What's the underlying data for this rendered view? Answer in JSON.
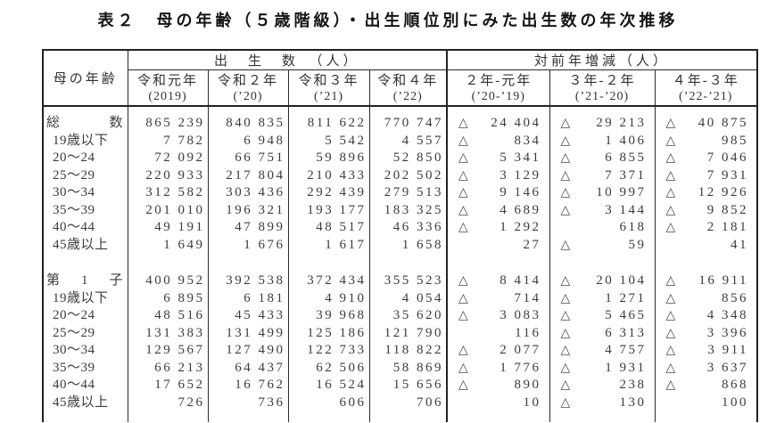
{
  "title": "表２　母の年齢（５歳階級）・出生順位別にみた出生数の年次推移",
  "table": {
    "corner_header": "母の年齢",
    "negative_mark": "△",
    "groups": [
      {
        "label": "出　生　数　（人）",
        "columns": [
          {
            "line1": "令和元年",
            "line2": "(2019)"
          },
          {
            "line1": "令和２年",
            "line2": "(’20)"
          },
          {
            "line1": "令和３年",
            "line2": "(’21)"
          },
          {
            "line1": "令和４年",
            "line2": "(’22)"
          }
        ]
      },
      {
        "label": "対前年増減（人）",
        "columns": [
          {
            "line1": "２年-元年",
            "line2": "(’20-’19)"
          },
          {
            "line1": "３年-２年",
            "line2": "(’21-’20)"
          },
          {
            "line1": "４年-３年",
            "line2": "(’22-’21)"
          }
        ]
      }
    ],
    "sections": [
      {
        "name": "総数",
        "rows": [
          {
            "label": "総数",
            "justify": true,
            "births": [
              "865 239",
              "840 835",
              "811 622",
              "770 747"
            ],
            "diffs": [
              {
                "neg": true,
                "value": "24 404"
              },
              {
                "neg": true,
                "value": "29 213"
              },
              {
                "neg": true,
                "value": "40 875"
              }
            ]
          },
          {
            "label": "19歳以下",
            "justify": false,
            "births": [
              "7 782",
              "6 948",
              "5 542",
              "4 557"
            ],
            "diffs": [
              {
                "neg": true,
                "value": "834"
              },
              {
                "neg": true,
                "value": "1 406"
              },
              {
                "neg": true,
                "value": "985"
              }
            ]
          },
          {
            "label": "20〜24",
            "justify": false,
            "births": [
              "72 092",
              "66 751",
              "59 896",
              "52 850"
            ],
            "diffs": [
              {
                "neg": true,
                "value": "5 341"
              },
              {
                "neg": true,
                "value": "6 855"
              },
              {
                "neg": true,
                "value": "7 046"
              }
            ]
          },
          {
            "label": "25〜29",
            "justify": false,
            "births": [
              "220 933",
              "217 804",
              "210 433",
              "202 502"
            ],
            "diffs": [
              {
                "neg": true,
                "value": "3 129"
              },
              {
                "neg": true,
                "value": "7 371"
              },
              {
                "neg": true,
                "value": "7 931"
              }
            ]
          },
          {
            "label": "30〜34",
            "justify": false,
            "births": [
              "312 582",
              "303 436",
              "292 439",
              "279 513"
            ],
            "diffs": [
              {
                "neg": true,
                "value": "9 146"
              },
              {
                "neg": true,
                "value": "10 997"
              },
              {
                "neg": true,
                "value": "12 926"
              }
            ]
          },
          {
            "label": "35〜39",
            "justify": false,
            "births": [
              "201 010",
              "196 321",
              "193 177",
              "183 325"
            ],
            "diffs": [
              {
                "neg": true,
                "value": "4 689"
              },
              {
                "neg": true,
                "value": "3 144"
              },
              {
                "neg": true,
                "value": "9 852"
              }
            ]
          },
          {
            "label": "40〜44",
            "justify": false,
            "births": [
              "49 191",
              "47 899",
              "48 517",
              "46 336"
            ],
            "diffs": [
              {
                "neg": true,
                "value": "1 292"
              },
              {
                "neg": false,
                "value": "618"
              },
              {
                "neg": true,
                "value": "2 181"
              }
            ]
          },
          {
            "label": "45歳以上",
            "justify": false,
            "births": [
              "1 649",
              "1 676",
              "1 617",
              "1 658"
            ],
            "diffs": [
              {
                "neg": false,
                "value": "27"
              },
              {
                "neg": true,
                "value": "59"
              },
              {
                "neg": false,
                "value": "41"
              }
            ]
          }
        ]
      },
      {
        "name": "第1子",
        "rows": [
          {
            "label": "第1子",
            "justify": true,
            "births": [
              "400 952",
              "392 538",
              "372 434",
              "355 523"
            ],
            "diffs": [
              {
                "neg": true,
                "value": "8 414"
              },
              {
                "neg": true,
                "value": "20 104"
              },
              {
                "neg": true,
                "value": "16 911"
              }
            ]
          },
          {
            "label": "19歳以下",
            "justify": false,
            "births": [
              "6 895",
              "6 181",
              "4 910",
              "4 054"
            ],
            "diffs": [
              {
                "neg": true,
                "value": "714"
              },
              {
                "neg": true,
                "value": "1 271"
              },
              {
                "neg": true,
                "value": "856"
              }
            ]
          },
          {
            "label": "20〜24",
            "justify": false,
            "births": [
              "48 516",
              "45 433",
              "39 968",
              "35 620"
            ],
            "diffs": [
              {
                "neg": true,
                "value": "3 083"
              },
              {
                "neg": true,
                "value": "5 465"
              },
              {
                "neg": true,
                "value": "4 348"
              }
            ]
          },
          {
            "label": "25〜29",
            "justify": false,
            "births": [
              "131 383",
              "131 499",
              "125 186",
              "121 790"
            ],
            "diffs": [
              {
                "neg": false,
                "value": "116"
              },
              {
                "neg": true,
                "value": "6 313"
              },
              {
                "neg": true,
                "value": "3 396"
              }
            ]
          },
          {
            "label": "30〜34",
            "justify": false,
            "births": [
              "129 567",
              "127 490",
              "122 733",
              "118 822"
            ],
            "diffs": [
              {
                "neg": true,
                "value": "2 077"
              },
              {
                "neg": true,
                "value": "4 757"
              },
              {
                "neg": true,
                "value": "3 911"
              }
            ]
          },
          {
            "label": "35〜39",
            "justify": false,
            "births": [
              "66 213",
              "64 437",
              "62 506",
              "58 869"
            ],
            "diffs": [
              {
                "neg": true,
                "value": "1 776"
              },
              {
                "neg": true,
                "value": "1 931"
              },
              {
                "neg": true,
                "value": "3 637"
              }
            ]
          },
          {
            "label": "40〜44",
            "justify": false,
            "births": [
              "17 652",
              "16 762",
              "16 524",
              "15 656"
            ],
            "diffs": [
              {
                "neg": true,
                "value": "890"
              },
              {
                "neg": true,
                "value": "238"
              },
              {
                "neg": true,
                "value": "868"
              }
            ]
          },
          {
            "label": "45歳以上",
            "justify": false,
            "births": [
              "726",
              "736",
              "606",
              "706"
            ],
            "diffs": [
              {
                "neg": false,
                "value": "10"
              },
              {
                "neg": true,
                "value": "130"
              },
              {
                "neg": false,
                "value": "100"
              }
            ]
          }
        ]
      }
    ]
  }
}
